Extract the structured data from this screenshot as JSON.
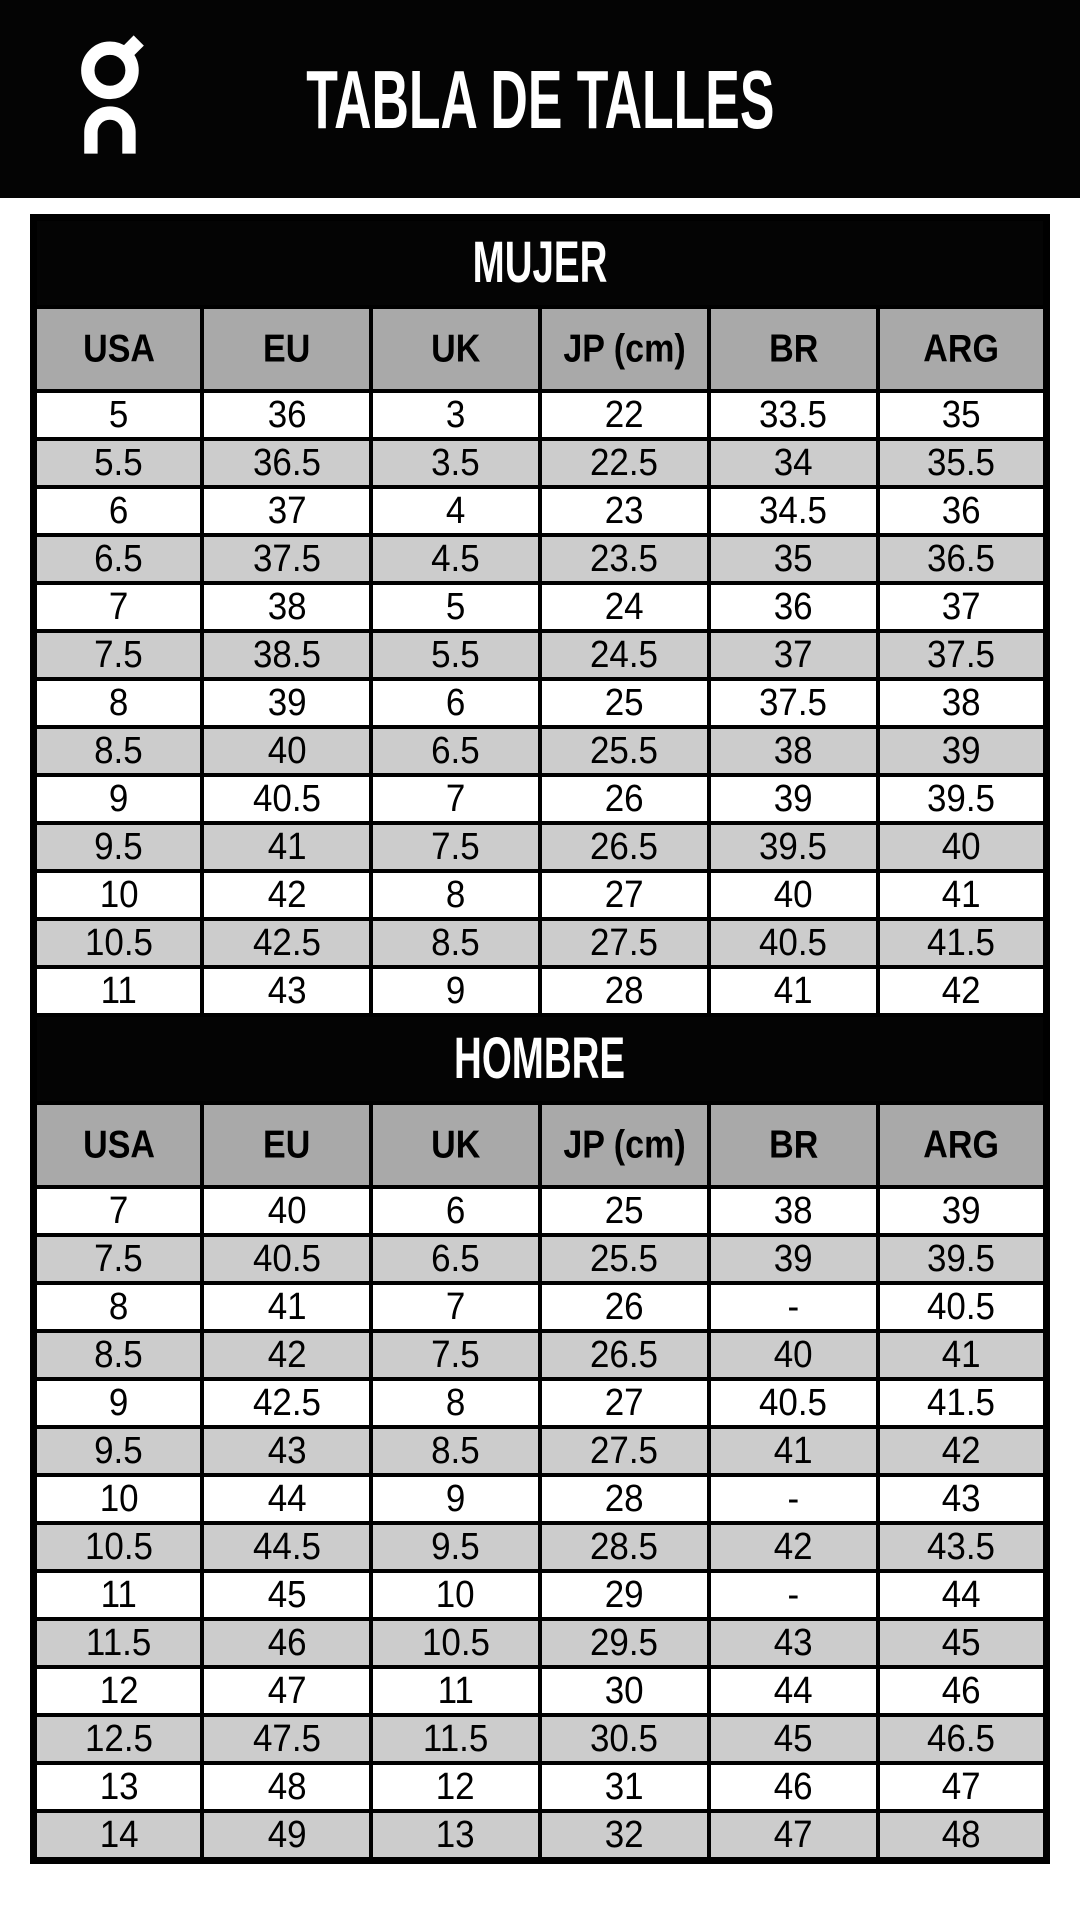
{
  "header": {
    "title": "TABLA DE TALLES",
    "logo_icon": "on-brand-logo"
  },
  "colors": {
    "banner_bg": "#040404",
    "banner_text": "#ffffff",
    "column_header_bg": "#a9a9a9",
    "alt_row_bg": "#cccccc",
    "row_bg": "#ffffff",
    "border": "#000000"
  },
  "sections": [
    {
      "title": "MUJER",
      "columns": [
        "USA",
        "EU",
        "UK",
        "JP (cm)",
        "BR",
        "ARG"
      ],
      "rows": [
        [
          "5",
          "36",
          "3",
          "22",
          "33.5",
          "35"
        ],
        [
          "5.5",
          "36.5",
          "3.5",
          "22.5",
          "34",
          "35.5"
        ],
        [
          "6",
          "37",
          "4",
          "23",
          "34.5",
          "36"
        ],
        [
          "6.5",
          "37.5",
          "4.5",
          "23.5",
          "35",
          "36.5"
        ],
        [
          "7",
          "38",
          "5",
          "24",
          "36",
          "37"
        ],
        [
          "7.5",
          "38.5",
          "5.5",
          "24.5",
          "37",
          "37.5"
        ],
        [
          "8",
          "39",
          "6",
          "25",
          "37.5",
          "38"
        ],
        [
          "8.5",
          "40",
          "6.5",
          "25.5",
          "38",
          "39"
        ],
        [
          "9",
          "40.5",
          "7",
          "26",
          "39",
          "39.5"
        ],
        [
          "9.5",
          "41",
          "7.5",
          "26.5",
          "39.5",
          "40"
        ],
        [
          "10",
          "42",
          "8",
          "27",
          "40",
          "41"
        ],
        [
          "10.5",
          "42.5",
          "8.5",
          "27.5",
          "40.5",
          "41.5"
        ],
        [
          "11",
          "43",
          "9",
          "28",
          "41",
          "42"
        ]
      ]
    },
    {
      "title": "HOMBRE",
      "columns": [
        "USA",
        "EU",
        "UK",
        "JP (cm)",
        "BR",
        "ARG"
      ],
      "rows": [
        [
          "7",
          "40",
          "6",
          "25",
          "38",
          "39"
        ],
        [
          "7.5",
          "40.5",
          "6.5",
          "25.5",
          "39",
          "39.5"
        ],
        [
          "8",
          "41",
          "7",
          "26",
          "-",
          "40.5"
        ],
        [
          "8.5",
          "42",
          "7.5",
          "26.5",
          "40",
          "41"
        ],
        [
          "9",
          "42.5",
          "8",
          "27",
          "40.5",
          "41.5"
        ],
        [
          "9.5",
          "43",
          "8.5",
          "27.5",
          "41",
          "42"
        ],
        [
          "10",
          "44",
          "9",
          "28",
          "-",
          "43"
        ],
        [
          "10.5",
          "44.5",
          "9.5",
          "28.5",
          "42",
          "43.5"
        ],
        [
          "11",
          "45",
          "10",
          "29",
          "-",
          "44"
        ],
        [
          "11.5",
          "46",
          "10.5",
          "29.5",
          "43",
          "45"
        ],
        [
          "12",
          "47",
          "11",
          "30",
          "44",
          "46"
        ],
        [
          "12.5",
          "47.5",
          "11.5",
          "30.5",
          "45",
          "46.5"
        ],
        [
          "13",
          "48",
          "12",
          "31",
          "46",
          "47"
        ],
        [
          "14",
          "49",
          "13",
          "32",
          "47",
          "48"
        ]
      ]
    }
  ]
}
